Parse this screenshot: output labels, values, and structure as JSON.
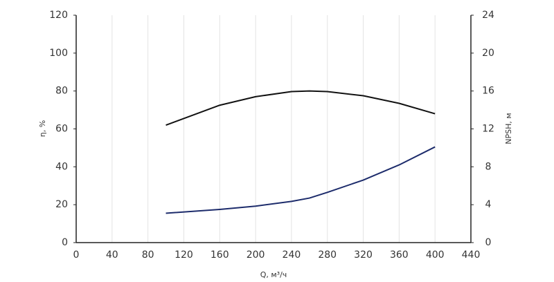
{
  "chart_data": {
    "type": "line",
    "x_label": "Q, м³/ч",
    "y_label": "η, %",
    "y2_label": "NPSH, м",
    "x": [
      100,
      160,
      200,
      240,
      260,
      280,
      320,
      360,
      400
    ],
    "series": [
      {
        "name": "η",
        "color": "#111111",
        "values": [
          62,
          72.5,
          77,
          79.7,
          80,
          79.7,
          77.5,
          73.5,
          68
        ]
      },
      {
        "name": "NPSH",
        "color": "#1c2b6b",
        "axis": "y2",
        "values": [
          3.1,
          3.5,
          3.85,
          4.35,
          4.7,
          5.3,
          6.6,
          8.2,
          10.1
        ]
      }
    ],
    "xlim": [
      0,
      440
    ],
    "xticks": [
      0,
      40,
      80,
      120,
      160,
      200,
      240,
      280,
      320,
      360,
      400,
      440
    ],
    "ylim": [
      0,
      120
    ],
    "yticks": [
      0,
      20,
      40,
      60,
      80,
      100,
      120
    ],
    "y2lim": [
      0,
      24
    ],
    "y2ticks": [
      0,
      4,
      8,
      12,
      16,
      20,
      24
    ],
    "grid": true
  }
}
